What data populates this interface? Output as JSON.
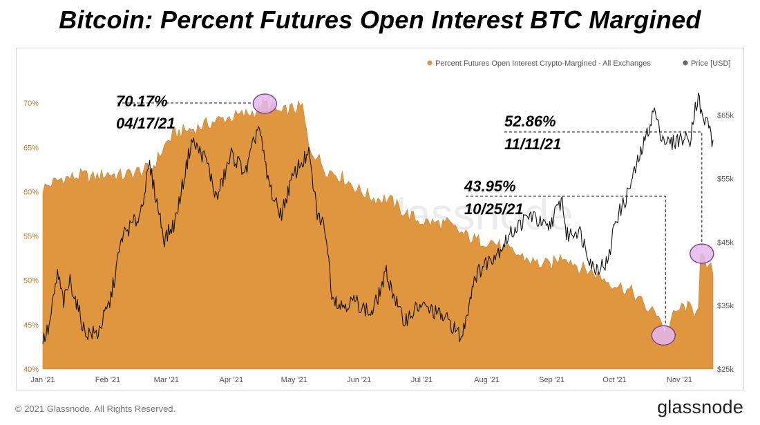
{
  "title": "Bitcoin: Percent Futures Open Interest BTC Margined",
  "footer": {
    "copyright": "© 2021 Glassnode. All Rights Reserved.",
    "logo": "glassnode"
  },
  "watermark": "glassnode",
  "colors": {
    "area": "#e0963f",
    "area_line": "#cf8430",
    "price": "#111111",
    "highlight_fill": "#e4b7ef",
    "highlight_stroke": "#7a3f8e",
    "legend_price": "#666666",
    "left_tick": "#c77a28"
  },
  "annotations": [
    {
      "value": "70.17%",
      "date": "04/17/21"
    },
    {
      "value": "52.86%",
      "date": "11/11/21"
    },
    {
      "value": "43.95%",
      "date": "10/25/21"
    }
  ],
  "chart_data": {
    "type": "area",
    "legend": {
      "placement": "top-right",
      "items": [
        {
          "label": "Percent Futures Open Interest Crypto-Margined - All Exchanges",
          "color": "#e0963f"
        },
        {
          "label": "Price [USD]",
          "color": "#666666"
        }
      ]
    },
    "x_ticks": [
      "Jan '21",
      "Feb '21",
      "Mar '21",
      "Apr '21",
      "May '21",
      "Jun '21",
      "Jul '21",
      "Aug '21",
      "Sep '21",
      "Oct '21",
      "Nov '21"
    ],
    "x_range": [
      "2021-01-01",
      "2021-11-17"
    ],
    "y_left": {
      "ticks": [
        "40%",
        "45%",
        "50%",
        "55%",
        "60%",
        "65%",
        "70%"
      ],
      "ylim": [
        40,
        71.5
      ]
    },
    "y_right": {
      "ticks": [
        "$25k",
        "$35k",
        "$45k",
        "$55k",
        "$65k"
      ],
      "ylim": [
        25000,
        69000
      ]
    },
    "grid": false,
    "series": [
      {
        "name": "Percent Futures Open Interest Crypto-Margined - All Exchanges",
        "axis": "left",
        "x": [
          "2021-01-01",
          "2021-01-05",
          "2021-01-10",
          "2021-01-15",
          "2021-01-20",
          "2021-01-25",
          "2021-02-01",
          "2021-02-08",
          "2021-02-15",
          "2021-02-22",
          "2021-03-01",
          "2021-03-05",
          "2021-03-10",
          "2021-03-15",
          "2021-03-22",
          "2021-03-29",
          "2021-04-05",
          "2021-04-10",
          "2021-04-14",
          "2021-04-17",
          "2021-04-20",
          "2021-04-25",
          "2021-04-28",
          "2021-05-02",
          "2021-05-05",
          "2021-05-08",
          "2021-05-12",
          "2021-05-16",
          "2021-05-20",
          "2021-05-25",
          "2021-06-01",
          "2021-06-08",
          "2021-06-15",
          "2021-06-22",
          "2021-06-29",
          "2021-07-06",
          "2021-07-13",
          "2021-07-20",
          "2021-07-27",
          "2021-08-03",
          "2021-08-10",
          "2021-08-17",
          "2021-08-24",
          "2021-08-31",
          "2021-09-07",
          "2021-09-14",
          "2021-09-21",
          "2021-09-28",
          "2021-10-05",
          "2021-10-10",
          "2021-10-14",
          "2021-10-18",
          "2021-10-22",
          "2021-10-25",
          "2021-10-28",
          "2021-11-01",
          "2021-11-04",
          "2021-11-08",
          "2021-11-10",
          "2021-11-11",
          "2021-11-13",
          "2021-11-15"
        ],
        "values": [
          60.4,
          60.9,
          61.5,
          61.6,
          61.9,
          61.6,
          62.1,
          61.8,
          62.3,
          62.6,
          65.5,
          66.6,
          66.9,
          67.2,
          67.8,
          68.3,
          68.6,
          68.9,
          69.3,
          70.17,
          69.6,
          68.8,
          69.3,
          69.4,
          69.6,
          65.0,
          64.0,
          62.5,
          62.2,
          61.5,
          60.2,
          59.3,
          59.2,
          57.8,
          56.8,
          56.5,
          56.4,
          55.3,
          54.5,
          54.5,
          53.5,
          52.8,
          52.0,
          51.7,
          52.9,
          51.5,
          50.9,
          49.9,
          49.2,
          48.6,
          47.5,
          46.5,
          46.4,
          43.95,
          45.6,
          46.8,
          47.1,
          46.5,
          47.5,
          52.86,
          51.9,
          51.3
        ]
      },
      {
        "name": "Price [USD]",
        "axis": "right",
        "x": [
          "2021-01-01",
          "2021-01-04",
          "2021-01-08",
          "2021-01-11",
          "2021-01-14",
          "2021-01-21",
          "2021-01-27",
          "2021-02-02",
          "2021-02-08",
          "2021-02-12",
          "2021-02-16",
          "2021-02-21",
          "2021-02-28",
          "2021-03-05",
          "2021-03-13",
          "2021-03-20",
          "2021-03-25",
          "2021-04-01",
          "2021-04-08",
          "2021-04-14",
          "2021-04-18",
          "2021-04-22",
          "2021-04-25",
          "2021-04-29",
          "2021-05-03",
          "2021-05-08",
          "2021-05-12",
          "2021-05-16",
          "2021-05-19",
          "2021-05-23",
          "2021-05-30",
          "2021-06-07",
          "2021-06-14",
          "2021-06-22",
          "2021-06-30",
          "2021-07-07",
          "2021-07-14",
          "2021-07-20",
          "2021-07-26",
          "2021-07-31",
          "2021-08-07",
          "2021-08-14",
          "2021-08-22",
          "2021-08-30",
          "2021-09-06",
          "2021-09-08",
          "2021-09-14",
          "2021-09-21",
          "2021-09-28",
          "2021-10-01",
          "2021-10-06",
          "2021-10-12",
          "2021-10-16",
          "2021-10-20",
          "2021-10-22",
          "2021-10-25",
          "2021-10-28",
          "2021-11-01",
          "2021-11-06",
          "2021-11-08",
          "2021-11-10",
          "2021-11-12",
          "2021-11-15",
          "2021-11-17"
        ],
        "values": [
          29400,
          31500,
          40000,
          35500,
          39000,
          30800,
          30500,
          35500,
          46000,
          47500,
          49000,
          57000,
          45500,
          48000,
          61000,
          58000,
          51800,
          58800,
          56000,
          63500,
          55500,
          51000,
          49500,
          54000,
          57000,
          58800,
          49500,
          47000,
          37000,
          35000,
          35700,
          33600,
          40100,
          32500,
          35000,
          34000,
          32500,
          29800,
          39500,
          41500,
          43800,
          47000,
          49300,
          47000,
          51800,
          46000,
          47000,
          40800,
          41800,
          48200,
          51500,
          57500,
          61500,
          66000,
          63000,
          61000,
          60500,
          61300,
          61300,
          65500,
          68000,
          64200,
          63900,
          60000
        ]
      }
    ],
    "highlights": [
      {
        "date": "2021-04-17",
        "value": 70.17
      },
      {
        "date": "2021-10-25",
        "value": 43.95
      },
      {
        "date": "2021-11-11",
        "value": 52.86
      }
    ]
  }
}
